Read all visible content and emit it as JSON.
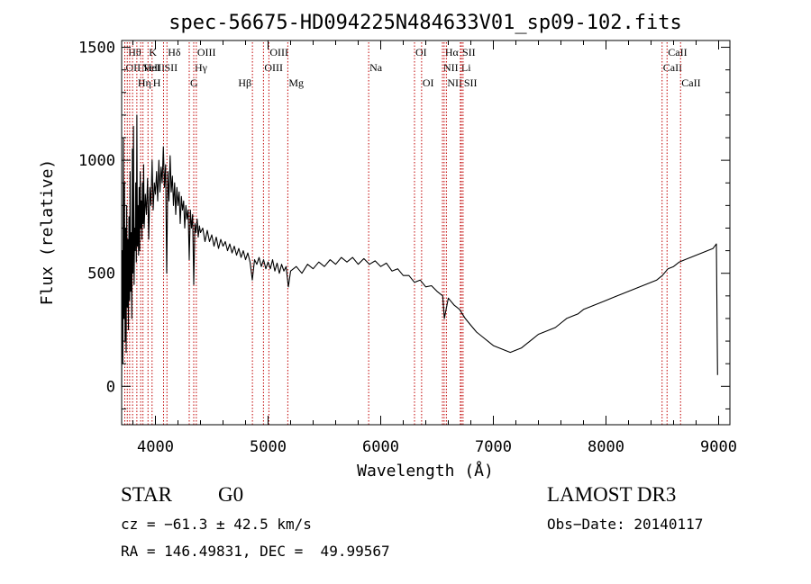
{
  "chart_data": {
    "type": "line",
    "title": "spec-56675-HD094225N484633V01_sp09-102.fits",
    "xlabel": "Wavelength (Å)",
    "ylabel": "Flux (relative)",
    "xlim": [
      3700,
      9100
    ],
    "ylim": [
      -170,
      1530
    ],
    "xticks": [
      4000,
      5000,
      6000,
      7000,
      8000,
      9000
    ],
    "yticks": [
      0,
      500,
      1000,
      1500
    ],
    "line_color": "#000000",
    "marker_color": "#c00000",
    "series": [
      {
        "points": [
          [
            3700,
            0
          ],
          [
            3705,
            600
          ],
          [
            3710,
            100
          ],
          [
            3715,
            1100
          ],
          [
            3720,
            300
          ],
          [
            3725,
            900
          ],
          [
            3730,
            200
          ],
          [
            3735,
            700
          ],
          [
            3740,
            150
          ],
          [
            3745,
            800
          ],
          [
            3750,
            350
          ],
          [
            3755,
            650
          ],
          [
            3760,
            250
          ],
          [
            3765,
            750
          ],
          [
            3770,
            380
          ],
          [
            3775,
            950
          ],
          [
            3780,
            420
          ],
          [
            3785,
            680
          ],
          [
            3790,
            300
          ],
          [
            3795,
            1050
          ],
          [
            3800,
            500
          ],
          [
            3805,
            1150
          ],
          [
            3810,
            450
          ],
          [
            3815,
            700
          ],
          [
            3820,
            600
          ],
          [
            3825,
            900
          ],
          [
            3830,
            550
          ],
          [
            3835,
            1200
          ],
          [
            3840,
            620
          ],
          [
            3845,
            800
          ],
          [
            3850,
            580
          ],
          [
            3855,
            880
          ],
          [
            3860,
            600
          ],
          [
            3865,
            950
          ],
          [
            3870,
            700
          ],
          [
            3875,
            820
          ],
          [
            3880,
            650
          ],
          [
            3885,
            900
          ],
          [
            3890,
            720
          ],
          [
            3895,
            980
          ],
          [
            3900,
            700
          ],
          [
            3910,
            850
          ],
          [
            3920,
            760
          ],
          [
            3930,
            920
          ],
          [
            3940,
            650
          ],
          [
            3950,
            880
          ],
          [
            3960,
            800
          ],
          [
            3970,
            1000
          ],
          [
            3980,
            780
          ],
          [
            3990,
            900
          ],
          [
            4000,
            850
          ],
          [
            4010,
            950
          ],
          [
            4020,
            820
          ],
          [
            4030,
            1000
          ],
          [
            4040,
            860
          ],
          [
            4050,
            970
          ],
          [
            4060,
            900
          ],
          [
            4070,
            1060
          ],
          [
            4080,
            880
          ],
          [
            4090,
            980
          ],
          [
            4100,
            500
          ],
          [
            4110,
            950
          ],
          [
            4120,
            820
          ],
          [
            4130,
            1020
          ],
          [
            4140,
            860
          ],
          [
            4150,
            930
          ],
          [
            4160,
            800
          ],
          [
            4170,
            900
          ],
          [
            4180,
            760
          ],
          [
            4190,
            880
          ],
          [
            4200,
            800
          ],
          [
            4210,
            860
          ],
          [
            4220,
            720
          ],
          [
            4230,
            840
          ],
          [
            4240,
            780
          ],
          [
            4250,
            820
          ],
          [
            4260,
            700
          ],
          [
            4270,
            800
          ],
          [
            4280,
            740
          ],
          [
            4290,
            780
          ],
          [
            4300,
            560
          ],
          [
            4310,
            780
          ],
          [
            4320,
            700
          ],
          [
            4330,
            760
          ],
          [
            4340,
            450
          ],
          [
            4350,
            720
          ],
          [
            4360,
            680
          ],
          [
            4370,
            740
          ],
          [
            4380,
            660
          ],
          [
            4390,
            710
          ],
          [
            4400,
            680
          ],
          [
            4420,
            700
          ],
          [
            4440,
            640
          ],
          [
            4460,
            690
          ],
          [
            4480,
            640
          ],
          [
            4500,
            670
          ],
          [
            4520,
            620
          ],
          [
            4540,
            660
          ],
          [
            4560,
            610
          ],
          [
            4580,
            650
          ],
          [
            4600,
            620
          ],
          [
            4620,
            640
          ],
          [
            4640,
            600
          ],
          [
            4660,
            630
          ],
          [
            4680,
            590
          ],
          [
            4700,
            620
          ],
          [
            4720,
            580
          ],
          [
            4740,
            610
          ],
          [
            4760,
            570
          ],
          [
            4780,
            600
          ],
          [
            4800,
            560
          ],
          [
            4820,
            590
          ],
          [
            4840,
            550
          ],
          [
            4860,
            470
          ],
          [
            4880,
            560
          ],
          [
            4900,
            540
          ],
          [
            4920,
            570
          ],
          [
            4940,
            530
          ],
          [
            4960,
            560
          ],
          [
            4980,
            520
          ],
          [
            5000,
            550
          ],
          [
            5020,
            520
          ],
          [
            5040,
            560
          ],
          [
            5060,
            510
          ],
          [
            5080,
            545
          ],
          [
            5100,
            500
          ],
          [
            5120,
            540
          ],
          [
            5140,
            510
          ],
          [
            5160,
            530
          ],
          [
            5180,
            440
          ],
          [
            5200,
            510
          ],
          [
            5250,
            530
          ],
          [
            5300,
            500
          ],
          [
            5350,
            540
          ],
          [
            5400,
            520
          ],
          [
            5450,
            550
          ],
          [
            5500,
            530
          ],
          [
            5550,
            560
          ],
          [
            5600,
            540
          ],
          [
            5650,
            570
          ],
          [
            5700,
            550
          ],
          [
            5750,
            570
          ],
          [
            5800,
            540
          ],
          [
            5850,
            565
          ],
          [
            5900,
            540
          ],
          [
            5950,
            555
          ],
          [
            6000,
            530
          ],
          [
            6050,
            545
          ],
          [
            6100,
            510
          ],
          [
            6150,
            520
          ],
          [
            6200,
            490
          ],
          [
            6250,
            490
          ],
          [
            6300,
            460
          ],
          [
            6350,
            470
          ],
          [
            6400,
            440
          ],
          [
            6450,
            445
          ],
          [
            6500,
            420
          ],
          [
            6550,
            400
          ],
          [
            6565,
            300
          ],
          [
            6600,
            390
          ],
          [
            6650,
            360
          ],
          [
            6700,
            340
          ],
          [
            6750,
            300
          ],
          [
            6800,
            270
          ],
          [
            6850,
            240
          ],
          [
            6900,
            220
          ],
          [
            6950,
            200
          ],
          [
            7000,
            180
          ],
          [
            7050,
            170
          ],
          [
            7100,
            160
          ],
          [
            7150,
            150
          ],
          [
            7200,
            160
          ],
          [
            7250,
            170
          ],
          [
            7300,
            190
          ],
          [
            7350,
            210
          ],
          [
            7400,
            230
          ],
          [
            7450,
            240
          ],
          [
            7500,
            250
          ],
          [
            7550,
            260
          ],
          [
            7600,
            280
          ],
          [
            7650,
            300
          ],
          [
            7700,
            310
          ],
          [
            7750,
            320
          ],
          [
            7800,
            340
          ],
          [
            7850,
            350
          ],
          [
            7900,
            360
          ],
          [
            7950,
            370
          ],
          [
            8000,
            380
          ],
          [
            8050,
            390
          ],
          [
            8100,
            400
          ],
          [
            8150,
            410
          ],
          [
            8200,
            420
          ],
          [
            8250,
            430
          ],
          [
            8300,
            440
          ],
          [
            8350,
            450
          ],
          [
            8400,
            460
          ],
          [
            8450,
            470
          ],
          [
            8500,
            490
          ],
          [
            8550,
            520
          ],
          [
            8600,
            530
          ],
          [
            8650,
            550
          ],
          [
            8700,
            560
          ],
          [
            8750,
            570
          ],
          [
            8800,
            580
          ],
          [
            8850,
            590
          ],
          [
            8900,
            600
          ],
          [
            8950,
            610
          ],
          [
            8980,
            630
          ],
          [
            8990,
            50
          ]
        ]
      }
    ],
    "line_markers": [
      {
        "wl": 3728,
        "row": 1,
        "label": "OII",
        "align": "start"
      },
      {
        "wl": 3750,
        "row": 0,
        "label": "Hθ",
        "align": "start"
      },
      {
        "wl": 3771,
        "row": 0,
        "label": "",
        "align": "start"
      },
      {
        "wl": 3797,
        "row": 1,
        "label": "",
        "align": "start"
      },
      {
        "wl": 3835,
        "row": 2,
        "label": "Hη",
        "align": "start"
      },
      {
        "wl": 3869,
        "row": 1,
        "label": "NeIII",
        "align": "start"
      },
      {
        "wl": 3889,
        "row": 1,
        "label": "HeI",
        "align": "start"
      },
      {
        "wl": 3934,
        "row": 0,
        "label": "K",
        "align": "start"
      },
      {
        "wl": 3970,
        "row": 2,
        "label": "H",
        "align": "start"
      },
      {
        "wl": 4072,
        "row": 1,
        "label": "SII",
        "align": "start"
      },
      {
        "wl": 4102,
        "row": 0,
        "label": "Hδ",
        "align": "start"
      },
      {
        "wl": 4300,
        "row": 2,
        "label": "G",
        "align": "start"
      },
      {
        "wl": 4340,
        "row": 1,
        "label": "Hγ",
        "align": "start"
      },
      {
        "wl": 4363,
        "row": 0,
        "label": "OIII",
        "align": "start"
      },
      {
        "wl": 4861,
        "row": 2,
        "label": "Hβ",
        "align": "end"
      },
      {
        "wl": 4959,
        "row": 1,
        "label": "OIII",
        "align": "start"
      },
      {
        "wl": 5007,
        "row": 0,
        "label": "OIII",
        "align": "start"
      },
      {
        "wl": 5175,
        "row": 2,
        "label": "Mg",
        "align": "start"
      },
      {
        "wl": 5893,
        "row": 1,
        "label": "Na",
        "align": "start"
      },
      {
        "wl": 6300,
        "row": 0,
        "label": "OI",
        "align": "start"
      },
      {
        "wl": 6363,
        "row": 2,
        "label": "OI",
        "align": "start"
      },
      {
        "wl": 6548,
        "row": 1,
        "label": "NII",
        "align": "start"
      },
      {
        "wl": 6563,
        "row": 0,
        "label": "Hα",
        "align": "start"
      },
      {
        "wl": 6583,
        "row": 2,
        "label": "NII",
        "align": "start"
      },
      {
        "wl": 6707,
        "row": 1,
        "label": "Li",
        "align": "start"
      },
      {
        "wl": 6716,
        "row": 0,
        "label": "SII",
        "align": "start"
      },
      {
        "wl": 6731,
        "row": 2,
        "label": "SII",
        "align": "start"
      },
      {
        "wl": 8498,
        "row": 1,
        "label": "CaII",
        "align": "start"
      },
      {
        "wl": 8542,
        "row": 0,
        "label": "CaII",
        "align": "start"
      },
      {
        "wl": 8662,
        "row": 2,
        "label": "CaII",
        "align": "start"
      }
    ]
  },
  "info": {
    "object_class": "STAR",
    "subclass": "G0",
    "survey": "LAMOST DR3",
    "cz": "cz = −61.3 ± 42.5 km/s",
    "obs_date": "Obs−Date: 20140117",
    "coords": "RA = 146.49831, DEC =  49.99567"
  }
}
